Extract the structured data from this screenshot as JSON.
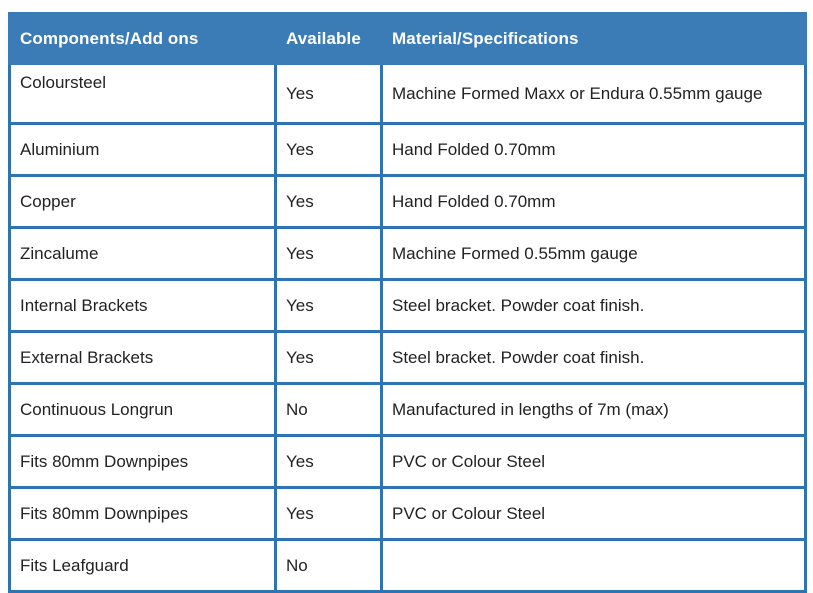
{
  "colors": {
    "header_bg": "#3b7cb7",
    "border": "#2e73b2",
    "header_text": "#ffffff",
    "body_text": "#222222",
    "row_bg": "#ffffff"
  },
  "table": {
    "columns": [
      {
        "label": "Components/Add ons"
      },
      {
        "label": "Available"
      },
      {
        "label": "Material/Specifications"
      }
    ],
    "rows": [
      {
        "component": "Coloursteel",
        "available": "Yes",
        "material": "Machine Formed Maxx or Endura 0.55mm gauge"
      },
      {
        "component": "Aluminium",
        "available": "Yes",
        "material": "Hand Folded 0.70mm"
      },
      {
        "component": "Copper",
        "available": "Yes",
        "material": "Hand Folded 0.70mm"
      },
      {
        "component": "Zincalume",
        "available": "Yes",
        "material": "Machine Formed 0.55mm gauge"
      },
      {
        "component": "Internal Brackets",
        "available": "Yes",
        "material": "Steel bracket. Powder coat finish."
      },
      {
        "component": "External Brackets",
        "available": "Yes",
        "material": "Steel bracket. Powder coat finish."
      },
      {
        "component": "Continuous Longrun",
        "available": "No",
        "material": "Manufactured in lengths of 7m (max)"
      },
      {
        "component": "Fits 80mm Downpipes",
        "available": "Yes",
        "material": "PVC or Colour Steel"
      },
      {
        "component": "Fits 80mm Downpipes",
        "available": "Yes",
        "material": "PVC or Colour Steel"
      },
      {
        "component": "Fits Leafguard",
        "available": "No",
        "material": ""
      }
    ]
  }
}
